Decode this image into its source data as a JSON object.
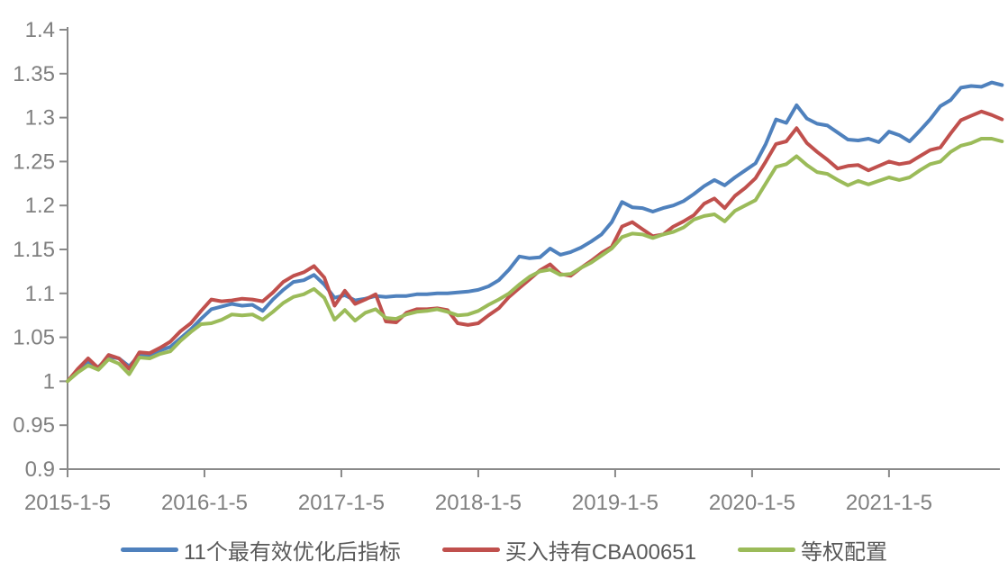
{
  "chart_data": {
    "type": "line",
    "title": "",
    "grid": false,
    "background": "#ffffff",
    "axis_color": "#898989",
    "tick_label_color": "#7f7f7f",
    "legend_text_color": "#595959",
    "legend_position": "bottom",
    "x_axis": {
      "range": [
        2015.0,
        2021.81
      ],
      "tick_values": [
        2015,
        2016,
        2017,
        2018,
        2019,
        2020,
        2021
      ],
      "tick_labels": [
        "2015-1-5",
        "2016-1-5",
        "2017-1-5",
        "2018-1-5",
        "2019-1-5",
        "2020-1-5",
        "2021-1-5"
      ]
    },
    "y_axis": {
      "range": [
        0.9,
        1.4
      ],
      "tick_values": [
        0.9,
        0.95,
        1.0,
        1.05,
        1.1,
        1.15,
        1.2,
        1.25,
        1.3,
        1.35,
        1.4
      ],
      "tick_labels": [
        "0.9",
        "0.95",
        "1",
        "1.05",
        "1.1",
        "1.15",
        "1.2",
        "1.25",
        "1.3",
        "1.35",
        "1.4"
      ]
    },
    "sampling": {
      "t_start": 2015.0,
      "t_step": 0.075
    },
    "series": [
      {
        "name": "11个最有效优化后指标",
        "color": "#4F81BD",
        "values": [
          1.0,
          1.012,
          1.021,
          1.016,
          1.028,
          1.026,
          1.017,
          1.03,
          1.029,
          1.035,
          1.039,
          1.049,
          1.059,
          1.071,
          1.082,
          1.085,
          1.088,
          1.086,
          1.087,
          1.08,
          1.093,
          1.104,
          1.113,
          1.115,
          1.121,
          1.11,
          1.095,
          1.098,
          1.092,
          1.094,
          1.097,
          1.096,
          1.097,
          1.097,
          1.099,
          1.099,
          1.1,
          1.1,
          1.101,
          1.102,
          1.104,
          1.108,
          1.115,
          1.127,
          1.142,
          1.14,
          1.141,
          1.151,
          1.144,
          1.147,
          1.152,
          1.159,
          1.167,
          1.181,
          1.204,
          1.198,
          1.197,
          1.193,
          1.197,
          1.2,
          1.205,
          1.213,
          1.222,
          1.229,
          1.223,
          1.232,
          1.24,
          1.248,
          1.27,
          1.298,
          1.294,
          1.314,
          1.299,
          1.293,
          1.291,
          1.283,
          1.275,
          1.274,
          1.276,
          1.272,
          1.284,
          1.28,
          1.273,
          1.285,
          1.298,
          1.313,
          1.32,
          1.334,
          1.336,
          1.335,
          1.34,
          1.337
        ]
      },
      {
        "name": "买入持有CBA00651",
        "color": "#C0504D",
        "values": [
          1.0,
          1.014,
          1.026,
          1.015,
          1.03,
          1.026,
          1.014,
          1.033,
          1.032,
          1.038,
          1.045,
          1.057,
          1.066,
          1.08,
          1.093,
          1.091,
          1.092,
          1.094,
          1.093,
          1.091,
          1.101,
          1.113,
          1.12,
          1.124,
          1.131,
          1.118,
          1.086,
          1.103,
          1.088,
          1.093,
          1.099,
          1.068,
          1.067,
          1.078,
          1.082,
          1.082,
          1.083,
          1.081,
          1.066,
          1.064,
          1.066,
          1.075,
          1.083,
          1.096,
          1.106,
          1.116,
          1.126,
          1.133,
          1.122,
          1.12,
          1.129,
          1.137,
          1.146,
          1.153,
          1.176,
          1.181,
          1.173,
          1.165,
          1.167,
          1.176,
          1.182,
          1.189,
          1.202,
          1.208,
          1.197,
          1.211,
          1.22,
          1.231,
          1.25,
          1.27,
          1.273,
          1.288,
          1.271,
          1.261,
          1.252,
          1.242,
          1.245,
          1.246,
          1.24,
          1.245,
          1.25,
          1.247,
          1.249,
          1.256,
          1.263,
          1.266,
          1.282,
          1.297,
          1.302,
          1.307,
          1.303,
          1.298
        ]
      },
      {
        "name": "等权配置",
        "color": "#9BBB59",
        "values": [
          1.0,
          1.01,
          1.018,
          1.013,
          1.025,
          1.02,
          1.008,
          1.027,
          1.026,
          1.031,
          1.034,
          1.046,
          1.056,
          1.065,
          1.066,
          1.07,
          1.076,
          1.075,
          1.076,
          1.07,
          1.079,
          1.089,
          1.096,
          1.099,
          1.105,
          1.095,
          1.07,
          1.081,
          1.069,
          1.078,
          1.082,
          1.072,
          1.071,
          1.076,
          1.079,
          1.08,
          1.082,
          1.079,
          1.075,
          1.076,
          1.08,
          1.087,
          1.093,
          1.1,
          1.11,
          1.119,
          1.125,
          1.127,
          1.121,
          1.122,
          1.129,
          1.135,
          1.143,
          1.151,
          1.164,
          1.168,
          1.167,
          1.163,
          1.167,
          1.17,
          1.175,
          1.184,
          1.188,
          1.19,
          1.182,
          1.194,
          1.2,
          1.206,
          1.225,
          1.244,
          1.247,
          1.256,
          1.246,
          1.238,
          1.236,
          1.229,
          1.223,
          1.228,
          1.224,
          1.228,
          1.232,
          1.229,
          1.232,
          1.24,
          1.247,
          1.25,
          1.261,
          1.268,
          1.271,
          1.276,
          1.276,
          1.273
        ]
      }
    ]
  }
}
